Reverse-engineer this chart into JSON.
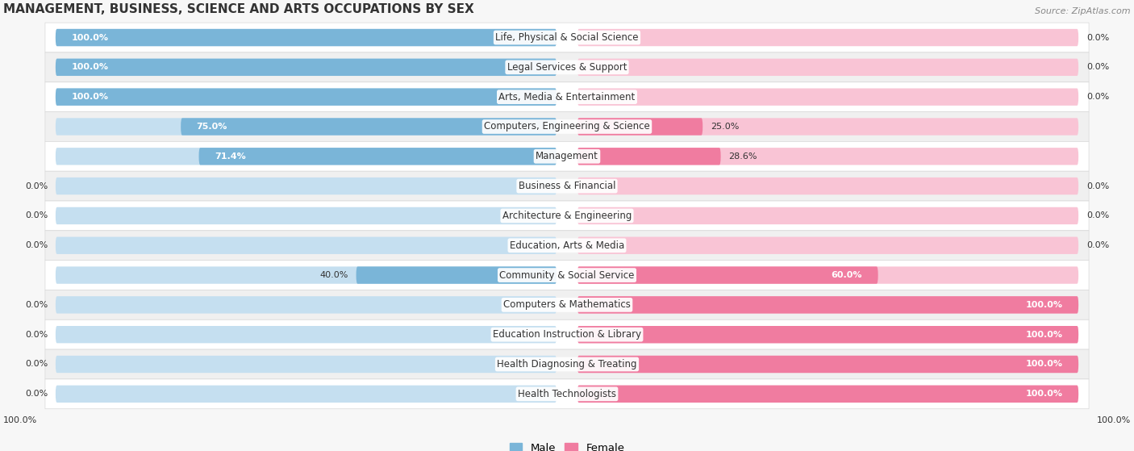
{
  "title": "MANAGEMENT, BUSINESS, SCIENCE AND ARTS OCCUPATIONS BY SEX",
  "source": "Source: ZipAtlas.com",
  "categories": [
    "Life, Physical & Social Science",
    "Legal Services & Support",
    "Arts, Media & Entertainment",
    "Computers, Engineering & Science",
    "Management",
    "Business & Financial",
    "Architecture & Engineering",
    "Education, Arts & Media",
    "Community & Social Service",
    "Computers & Mathematics",
    "Education Instruction & Library",
    "Health Diagnosing & Treating",
    "Health Technologists"
  ],
  "male": [
    100.0,
    100.0,
    100.0,
    75.0,
    71.4,
    0.0,
    0.0,
    0.0,
    40.0,
    0.0,
    0.0,
    0.0,
    0.0
  ],
  "female": [
    0.0,
    0.0,
    0.0,
    25.0,
    28.6,
    0.0,
    0.0,
    0.0,
    60.0,
    100.0,
    100.0,
    100.0,
    100.0
  ],
  "male_color": "#7ab5d8",
  "female_color": "#f07ca0",
  "male_bg_color": "#c5dff0",
  "female_bg_color": "#f9c4d5",
  "row_bg_white": "#ffffff",
  "row_bg_gray": "#f0f0f0",
  "row_border_color": "#d8d8d8",
  "text_dark": "#333333",
  "text_source": "#888888",
  "figsize": [
    14.06,
    5.59
  ],
  "dpi": 100,
  "title_fontsize": 11,
  "label_fontsize": 8.5,
  "value_fontsize": 8.0,
  "source_fontsize": 8.0,
  "legend_fontsize": 9.5
}
